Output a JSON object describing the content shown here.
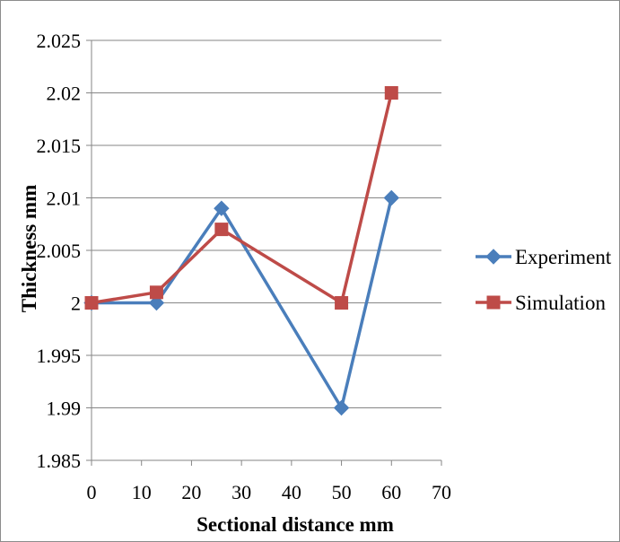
{
  "chart_data": {
    "type": "line",
    "title": "",
    "xlabel": "Sectional distance mm",
    "ylabel": "Thickness mm",
    "xlim": [
      0,
      70
    ],
    "ylim": [
      1.985,
      2.025
    ],
    "x_ticks": [
      "0",
      "10",
      "20",
      "30",
      "40",
      "50",
      "60",
      "70"
    ],
    "y_ticks": [
      "1.985",
      "1.99",
      "1.995",
      "2",
      "2.005",
      "2.01",
      "2.015",
      "2.02",
      "2.025"
    ],
    "grid": "horizontal",
    "legend_position": "right",
    "series": [
      {
        "name": "Experiment",
        "color": "#4a7ebb",
        "marker": "diamond",
        "x": [
          0,
          13,
          26,
          50,
          60
        ],
        "y": [
          2.0,
          2.0,
          2.009,
          1.99,
          2.01
        ]
      },
      {
        "name": "Simulation",
        "color": "#be4b48",
        "marker": "square",
        "x": [
          0,
          13,
          26,
          50,
          60
        ],
        "y": [
          2.0,
          2.001,
          2.007,
          2.0,
          2.02
        ]
      }
    ]
  }
}
